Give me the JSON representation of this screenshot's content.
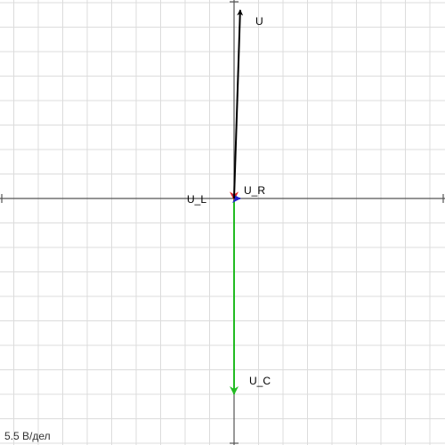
{
  "scale_label": "5.5 В/дел",
  "diagram": {
    "type": "phasor",
    "grid": true,
    "volts_per_division": 5.5,
    "vectors": [
      {
        "key": "u",
        "label": "U",
        "color": "#000000",
        "x": 0.25,
        "y": 7.7
      },
      {
        "key": "ur",
        "label": "U_R",
        "color": "#2222cc",
        "x": 0.25,
        "y": 0.0
      },
      {
        "key": "ul",
        "label": "U_L",
        "color": "#dd2222",
        "x": 0.0,
        "y": -0.05
      },
      {
        "key": "uc",
        "label": "U_C",
        "color": "#22bb22",
        "x": 0.0,
        "y": -8.0
      }
    ]
  }
}
